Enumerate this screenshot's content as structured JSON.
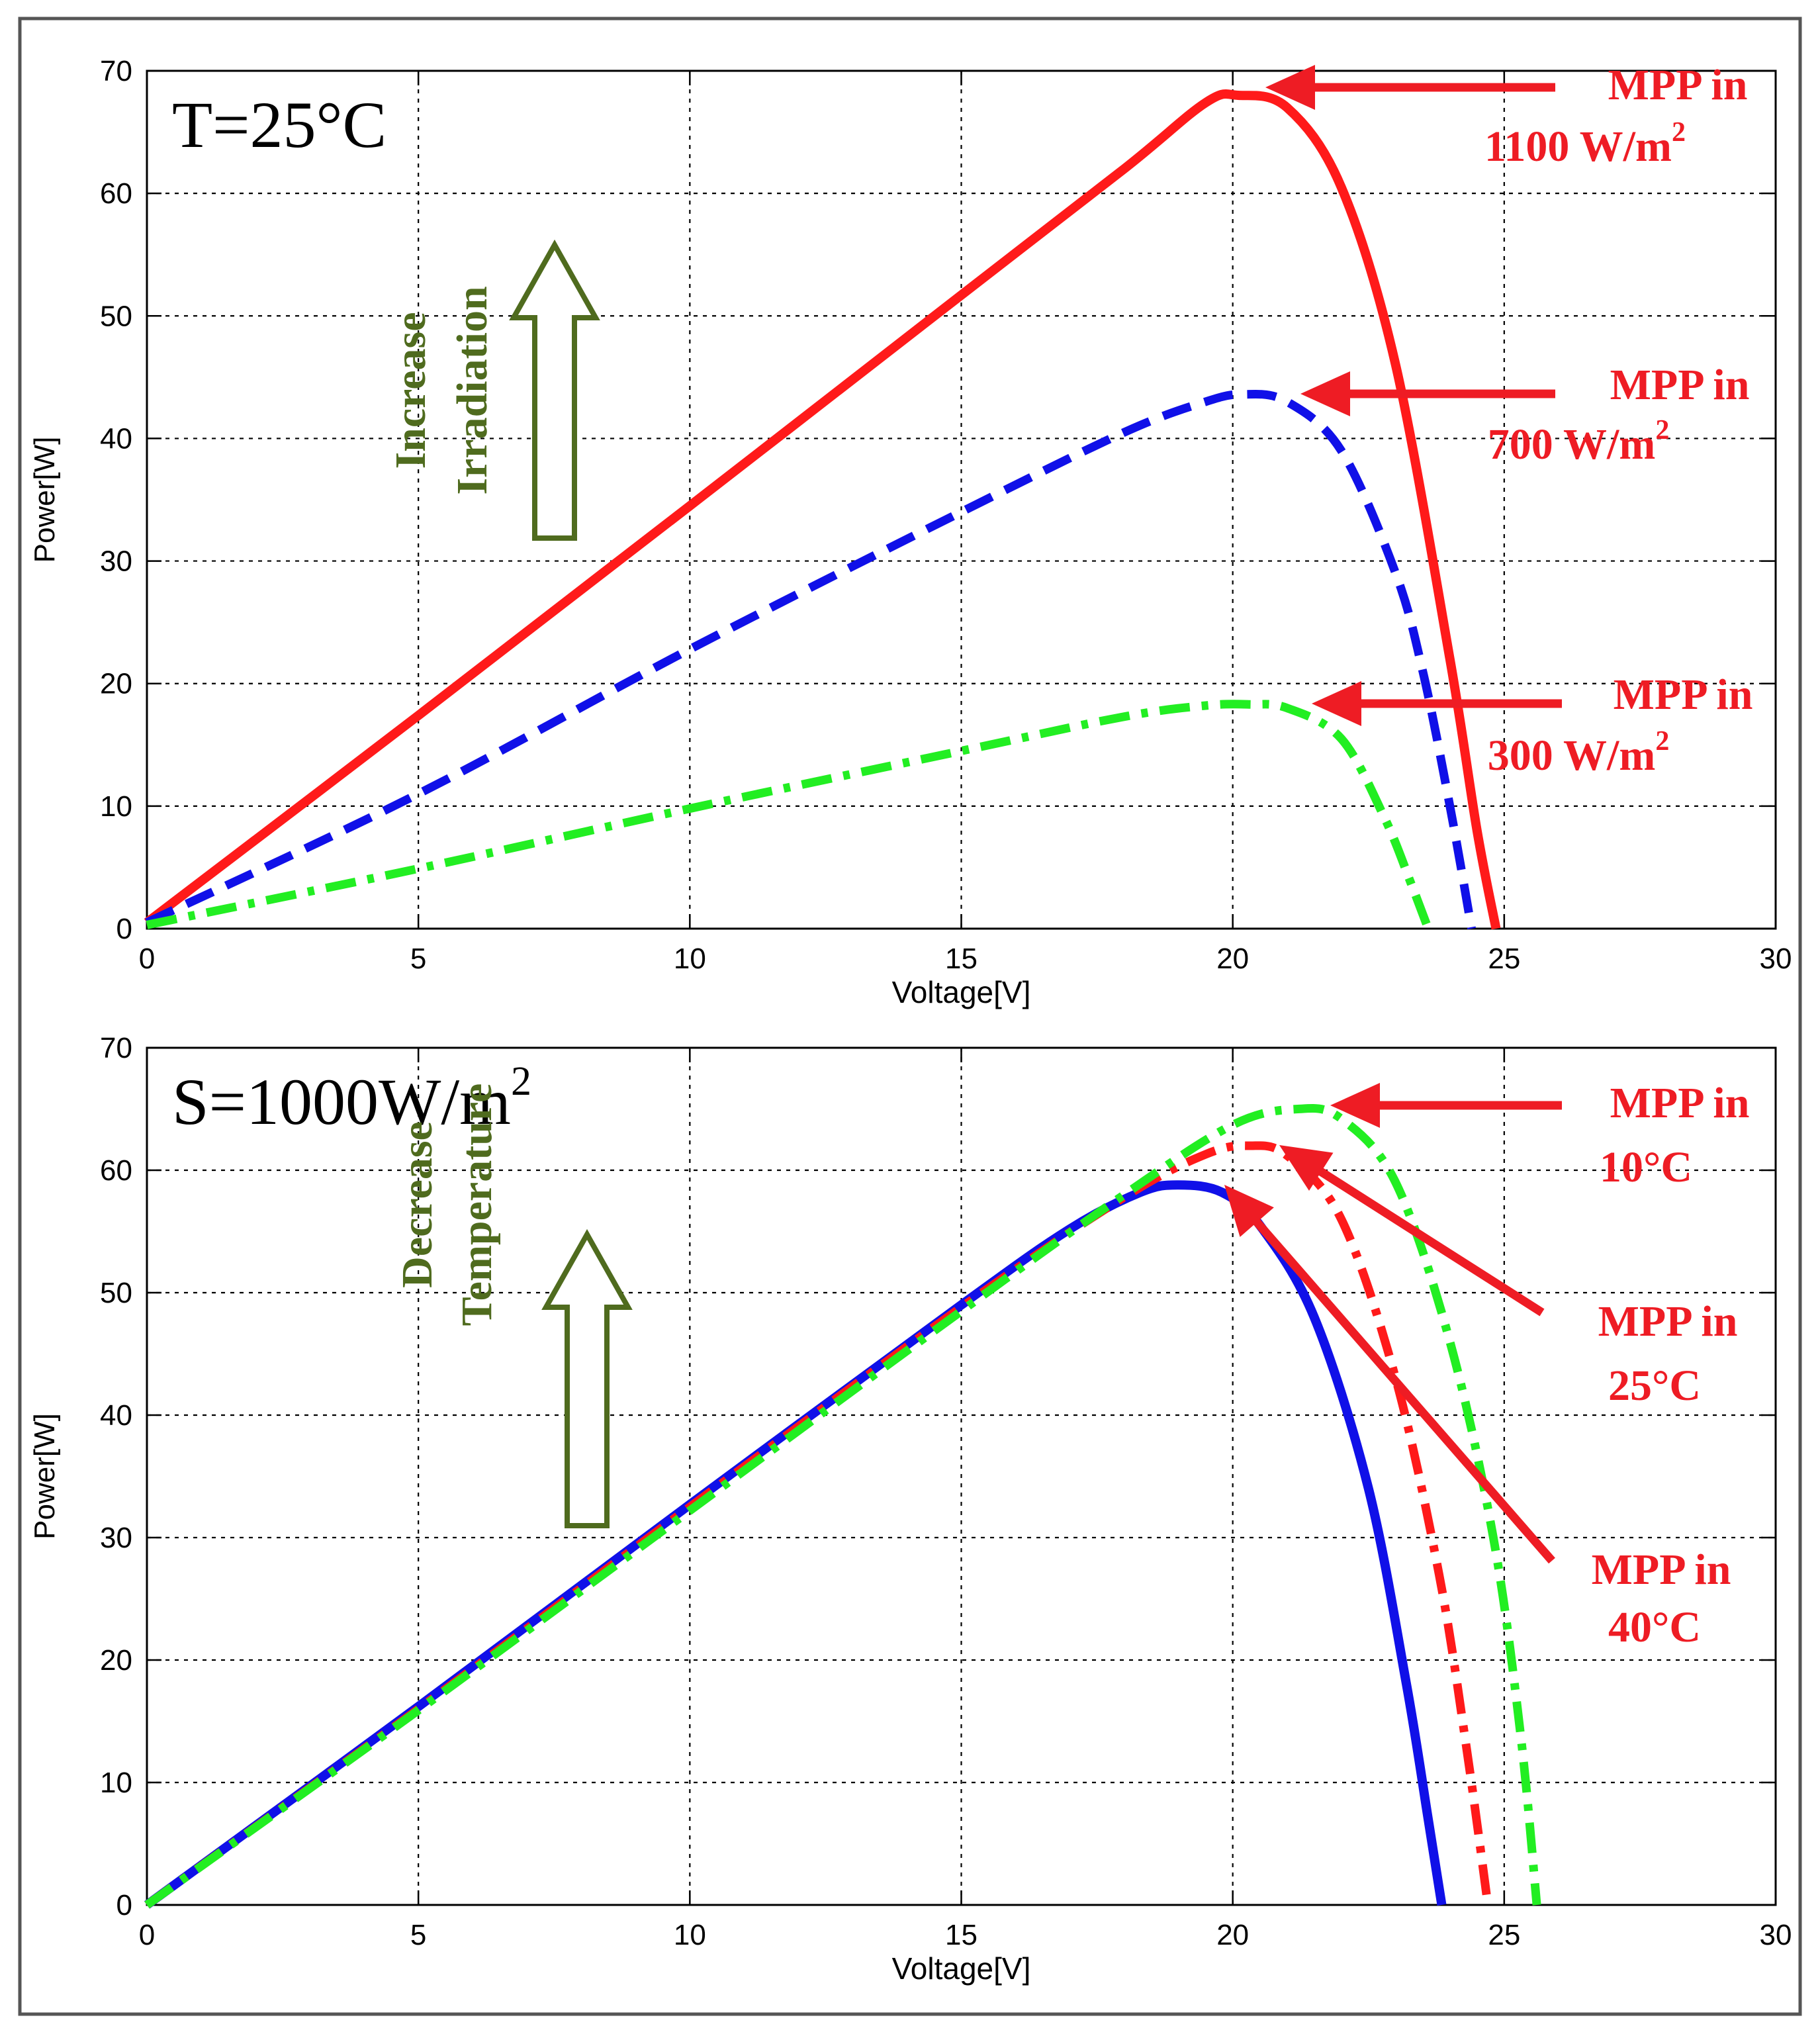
{
  "colors": {
    "red": "#ff1a1a",
    "blue": "#1010e8",
    "green": "#22ee22",
    "annot_green": "#4f6b1e",
    "annot_red": "#ee1c24",
    "grid": "#000000",
    "border": "#555555"
  },
  "chart_data": [
    {
      "type": "line",
      "panel": "top",
      "condition_label": {
        "text": "T=25°C"
      },
      "xlabel": "Voltage[V]",
      "ylabel": "Power[W]",
      "xlim": [
        0,
        30
      ],
      "ylim": [
        0,
        70
      ],
      "xticks": [
        0,
        5,
        10,
        15,
        20,
        25,
        30
      ],
      "yticks": [
        0,
        10,
        20,
        30,
        40,
        50,
        60,
        70
      ],
      "grid": true,
      "trend_label": {
        "lines": [
          "Increase",
          "Irradiation"
        ]
      },
      "series": [
        {
          "name": "1100 W/m2",
          "style": "solid",
          "color": "red",
          "points": [
            [
              0,
              0.5
            ],
            [
              5,
              17.4
            ],
            [
              10,
              34.5
            ],
            [
              15,
              51.7
            ],
            [
              18,
              62
            ],
            [
              19.5,
              67.4
            ],
            [
              20.1,
              68
            ],
            [
              21,
              67
            ],
            [
              22,
              60.5
            ],
            [
              23,
              46
            ],
            [
              24,
              22
            ],
            [
              24.5,
              8
            ],
            [
              24.85,
              0
            ]
          ]
        },
        {
          "name": "700 W/m2",
          "style": "dashed",
          "color": "blue",
          "points": [
            [
              0,
              0.5
            ],
            [
              5,
              11
            ],
            [
              10,
              22.8
            ],
            [
              15,
              34
            ],
            [
              18,
              40.5
            ],
            [
              19.5,
              43
            ],
            [
              20.2,
              43.6
            ],
            [
              21,
              43
            ],
            [
              22,
              39
            ],
            [
              23,
              29
            ],
            [
              23.5,
              21
            ],
            [
              24,
              10
            ],
            [
              24.4,
              0
            ]
          ]
        },
        {
          "name": "300 W/m2",
          "style": "dashdot",
          "color": "green",
          "points": [
            [
              0,
              0.3
            ],
            [
              5,
              4.9
            ],
            [
              10,
              9.8
            ],
            [
              15,
              14.5
            ],
            [
              18,
              17.3
            ],
            [
              19.5,
              18.2
            ],
            [
              20.3,
              18.3
            ],
            [
              21,
              18
            ],
            [
              22,
              15.5
            ],
            [
              22.8,
              9
            ],
            [
              23.3,
              3.5
            ],
            [
              23.6,
              0
            ]
          ]
        }
      ],
      "annotations": [
        {
          "lines": [
            "MPP in",
            "1100 W/m",
            "2"
          ],
          "target": [
            20.1,
            68
          ]
        },
        {
          "lines": [
            "MPP in",
            "700 W/m",
            "2"
          ],
          "target": [
            20.2,
            43.6
          ]
        },
        {
          "lines": [
            "MPP in",
            "300 W/m",
            "2"
          ],
          "target": [
            20.3,
            18.3
          ]
        }
      ]
    },
    {
      "type": "line",
      "panel": "bottom",
      "condition_label": {
        "text": "S=1000W/m",
        "sup": "2"
      },
      "xlabel": "Voltage[V]",
      "ylabel": "Power[W]",
      "xlim": [
        0,
        30
      ],
      "ylim": [
        0,
        70
      ],
      "xticks": [
        0,
        5,
        10,
        15,
        20,
        25,
        30
      ],
      "yticks": [
        0,
        10,
        20,
        30,
        40,
        50,
        60,
        70
      ],
      "grid": true,
      "trend_label": {
        "lines": [
          "Decrease",
          "Temperature"
        ]
      },
      "series": [
        {
          "name": "40°C",
          "style": "solid",
          "color": "blue",
          "points": [
            [
              0,
              0
            ],
            [
              5,
              16.2
            ],
            [
              10,
              32.7
            ],
            [
              15,
              49
            ],
            [
              17,
              55.2
            ],
            [
              18.3,
              58.2
            ],
            [
              19,
              58.8
            ],
            [
              19.8,
              58.2
            ],
            [
              20.5,
              55.5
            ],
            [
              21.5,
              48
            ],
            [
              22.5,
              34
            ],
            [
              23.2,
              18
            ],
            [
              23.6,
              7
            ],
            [
              23.85,
              0
            ]
          ]
        },
        {
          "name": "25°C",
          "style": "dashdot",
          "color": "red",
          "points": [
            [
              0,
              0
            ],
            [
              5,
              16
            ],
            [
              10,
              32.5
            ],
            [
              15,
              48.8
            ],
            [
              18,
              57.8
            ],
            [
              19.5,
              61.3
            ],
            [
              20.3,
              62
            ],
            [
              21,
              61.2
            ],
            [
              22,
              56
            ],
            [
              23,
              43
            ],
            [
              23.8,
              27
            ],
            [
              24.3,
              13
            ],
            [
              24.7,
              0
            ]
          ]
        },
        {
          "name": "10°C",
          "style": "dashdot",
          "color": "green",
          "points": [
            [
              0,
              0
            ],
            [
              5,
              15.9
            ],
            [
              10,
              32.2
            ],
            [
              15,
              48.5
            ],
            [
              18,
              58
            ],
            [
              20,
              63.7
            ],
            [
              21.2,
              65
            ],
            [
              22,
              64.2
            ],
            [
              23,
              59
            ],
            [
              24,
              46
            ],
            [
              24.8,
              30
            ],
            [
              25.3,
              14
            ],
            [
              25.6,
              0
            ]
          ]
        }
      ],
      "annotations": [
        {
          "lines": [
            "MPP in",
            "10°C"
          ],
          "target": [
            21.2,
            65
          ]
        },
        {
          "lines": [
            "MPP in",
            "25°C"
          ],
          "target": [
            20.3,
            62
          ]
        },
        {
          "lines": [
            "MPP in",
            "40°C"
          ],
          "target": [
            19.9,
            58.5
          ]
        }
      ]
    }
  ]
}
